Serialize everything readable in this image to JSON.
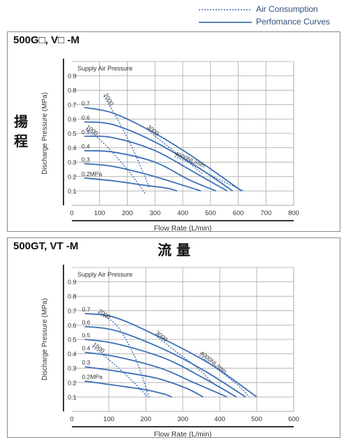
{
  "legend": {
    "air_consumption_label": "Air Consumption",
    "performance_label": "Perfomance Curves"
  },
  "side_labels": {
    "head": "揚 程",
    "flow": "流 量"
  },
  "colors": {
    "curve": "#3b6fb6",
    "axis": "#333333",
    "grid": "#a8a8a8",
    "panel_border": "#8a8a8a"
  },
  "chart_data": [
    {
      "type": "line",
      "title": "500G□, V□ -M",
      "xlabel": "Flow Rate (L/min)",
      "ylabel": "Discharge Pressure (MPa)",
      "subtitle": "Supply Air Pressure",
      "xlim": [
        0,
        800
      ],
      "ylim": [
        0,
        1.0
      ],
      "xticks": [
        "0",
        "100",
        "200",
        "300",
        "400",
        "500",
        "600",
        "700",
        "800"
      ],
      "yticks": [
        "0.1",
        "0.2",
        "0.3",
        "0.4",
        "0.5",
        "0.6",
        "0.7",
        "0.8",
        "0.9"
      ],
      "grid": true,
      "performance_curves": [
        {
          "name": "0.7",
          "points": [
            [
              45,
              0.68
            ],
            [
              150,
              0.64
            ],
            [
              300,
              0.5
            ],
            [
              450,
              0.32
            ],
            [
              612,
              0.1
            ]
          ]
        },
        {
          "name": "0.6",
          "points": [
            [
              45,
              0.58
            ],
            [
              150,
              0.56
            ],
            [
              300,
              0.44
            ],
            [
              450,
              0.27
            ],
            [
              580,
              0.1
            ]
          ]
        },
        {
          "name": "0.5",
          "points": [
            [
              45,
              0.48
            ],
            [
              150,
              0.47
            ],
            [
              300,
              0.38
            ],
            [
              450,
              0.22
            ],
            [
              560,
              0.1
            ]
          ]
        },
        {
          "name": "0.4",
          "points": [
            [
              45,
              0.38
            ],
            [
              150,
              0.37
            ],
            [
              300,
              0.3
            ],
            [
              420,
              0.18
            ],
            [
              520,
              0.1
            ]
          ]
        },
        {
          "name": "0.3",
          "points": [
            [
              45,
              0.29
            ],
            [
              150,
              0.27
            ],
            [
              280,
              0.21
            ],
            [
              400,
              0.14
            ],
            [
              465,
              0.1
            ]
          ]
        },
        {
          "name": "0.2MPa",
          "points": [
            [
              45,
              0.19
            ],
            [
              150,
              0.17
            ],
            [
              260,
              0.14
            ],
            [
              340,
              0.12
            ],
            [
              380,
              0.1
            ]
          ]
        }
      ],
      "air_consumption_curves": [
        {
          "name": "2000",
          "points": [
            [
              115,
              0.76
            ],
            [
              170,
              0.58
            ],
            [
              230,
              0.35
            ],
            [
              280,
              0.12
            ]
          ]
        },
        {
          "name": "3000",
          "points": [
            [
              270,
              0.53
            ],
            [
              340,
              0.42
            ],
            [
              420,
              0.3
            ],
            [
              470,
              0.22
            ]
          ]
        },
        {
          "name": "4000NL/min",
          "points": [
            [
              370,
              0.34
            ],
            [
              430,
              0.29
            ],
            [
              510,
              0.2
            ],
            [
              620,
              0.1
            ]
          ]
        },
        {
          "name": "1000",
          "points": [
            [
              50,
              0.53
            ],
            [
              110,
              0.44
            ],
            [
              200,
              0.25
            ],
            [
              265,
              0.08
            ]
          ]
        }
      ],
      "curve_labels": [
        "0.7",
        "0.6",
        "0.5",
        "0.4",
        "0.3",
        "0.2MPa",
        "2000",
        "3000",
        "4000NL/min",
        "1000"
      ]
    },
    {
      "type": "line",
      "title": "500GT, VT -M",
      "xlabel": "Flow Rate (L/min)",
      "ylabel": "Discharge Pressure (MPa)",
      "subtitle": "Supply Air Pressure",
      "xlim": [
        0,
        600
      ],
      "ylim": [
        0,
        1.0
      ],
      "xticks": [
        "0",
        "100",
        "200",
        "300",
        "400",
        "500",
        "600"
      ],
      "yticks": [
        "0.1",
        "0.2",
        "0.3",
        "0.4",
        "0.5",
        "0.6",
        "0.7",
        "0.8",
        "0.9"
      ],
      "grid": true,
      "performance_curves": [
        {
          "name": "0.7",
          "points": [
            [
              35,
              0.68
            ],
            [
              120,
              0.65
            ],
            [
              250,
              0.5
            ],
            [
              380,
              0.32
            ],
            [
              500,
              0.1
            ]
          ]
        },
        {
          "name": "0.6",
          "points": [
            [
              35,
              0.59
            ],
            [
              120,
              0.56
            ],
            [
              250,
              0.43
            ],
            [
              360,
              0.28
            ],
            [
              470,
              0.1
            ]
          ]
        },
        {
          "name": "0.5",
          "points": [
            [
              35,
              0.5
            ],
            [
              120,
              0.47
            ],
            [
              250,
              0.37
            ],
            [
              350,
              0.24
            ],
            [
              445,
              0.1
            ]
          ]
        },
        {
          "name": "0.4",
          "points": [
            [
              35,
              0.41
            ],
            [
              120,
              0.38
            ],
            [
              240,
              0.3
            ],
            [
              330,
              0.2
            ],
            [
              420,
              0.1
            ]
          ]
        },
        {
          "name": "0.3",
          "points": [
            [
              35,
              0.31
            ],
            [
              120,
              0.28
            ],
            [
              230,
              0.23
            ],
            [
              310,
              0.16
            ],
            [
              355,
              0.1
            ]
          ]
        },
        {
          "name": "0.2MPa",
          "points": [
            [
              35,
              0.21
            ],
            [
              120,
              0.18
            ],
            [
              200,
              0.15
            ],
            [
              250,
              0.12
            ],
            [
              270,
              0.1
            ]
          ]
        }
      ],
      "air_consumption_curves": [
        {
          "name": "2000",
          "points": [
            [
              70,
              0.68
            ],
            [
              120,
              0.6
            ],
            [
              170,
              0.38
            ],
            [
              210,
              0.09
            ]
          ]
        },
        {
          "name": "3000",
          "points": [
            [
              225,
              0.53
            ],
            [
              280,
              0.42
            ],
            [
              340,
              0.3
            ],
            [
              380,
              0.2
            ]
          ]
        },
        {
          "name": "4000NL/min",
          "points": [
            [
              345,
              0.39
            ],
            [
              390,
              0.3
            ],
            [
              450,
              0.18
            ],
            [
              480,
              0.1
            ]
          ]
        },
        {
          "name": "1000",
          "points": [
            [
              55,
              0.45
            ],
            [
              100,
              0.36
            ],
            [
              160,
              0.22
            ],
            [
              205,
              0.1
            ]
          ]
        }
      ],
      "curve_labels": [
        "0.7",
        "0.6",
        "0.5",
        "0.4",
        "0.3",
        "0.2MPa",
        "2000",
        "3000",
        "4000NL/min",
        "1000"
      ]
    }
  ]
}
